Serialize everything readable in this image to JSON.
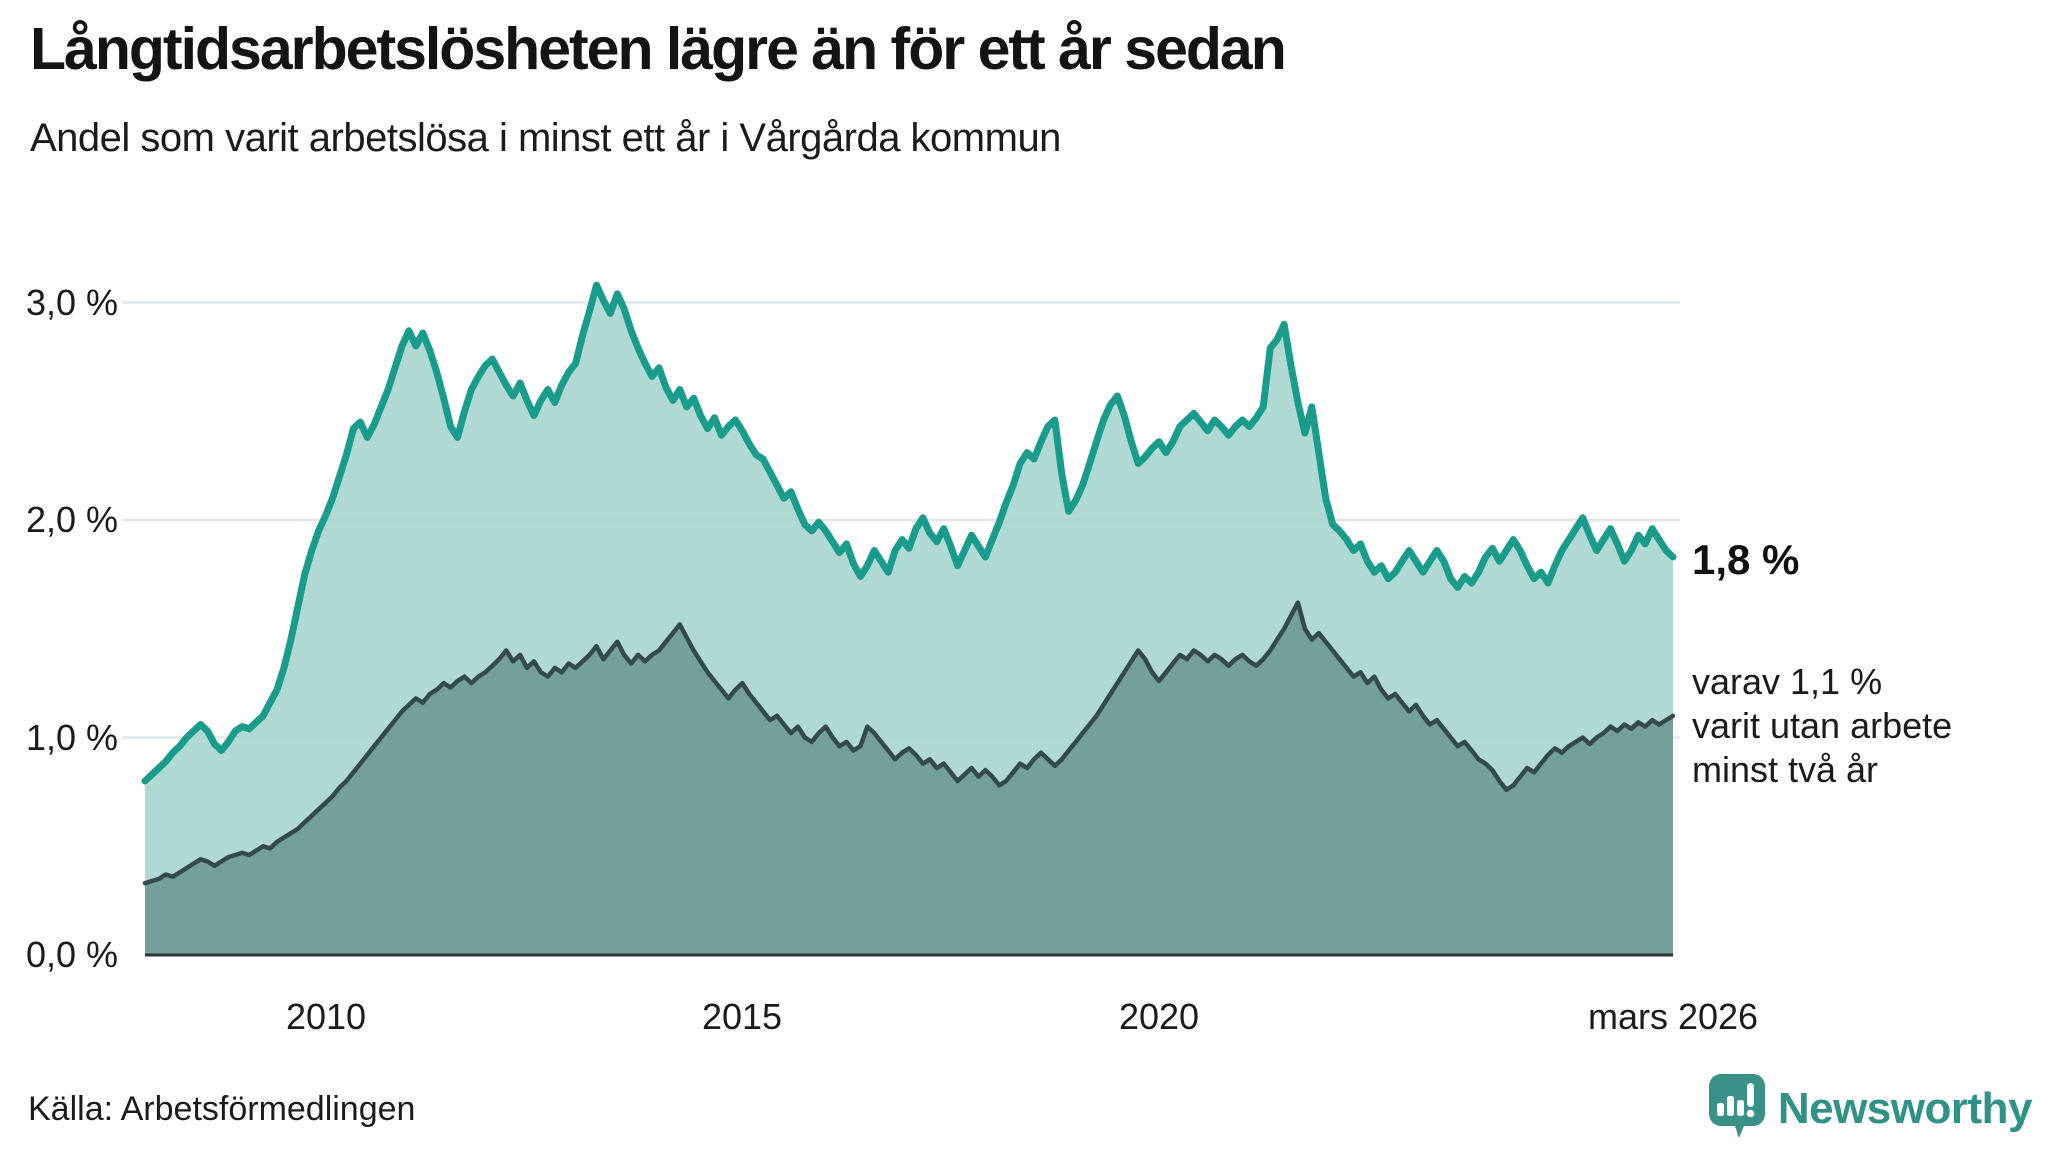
{
  "header": {
    "title": "Långtidsarbetslösheten lägre än för ett år sedan",
    "subtitle": "Andel som varit arbetslösa i minst ett år i Vårgårda kommun"
  },
  "annotations": {
    "end_value_label": "1,8 %",
    "secondary_note": "varav 1,1 %\nvarit utan arbete\nminst två år"
  },
  "footer": {
    "source": "Källa: Arbetsförmedlingen",
    "brand": "Newsworthy"
  },
  "colors": {
    "series1_line": "#1a9c8d",
    "series1_fill": "#a9d6cf",
    "series2_line": "#344a4d",
    "series2_fill": "#6f9b95",
    "gridline": "#e4e7e9",
    "baseline": "#2e3436",
    "brand_teal": "#3a9188",
    "text": "#1b1b1b"
  },
  "chart_data": {
    "type": "area",
    "title": "Långtidsarbetslösheten lägre än för ett år sedan",
    "subtitle": "Andel som varit arbetslösa i minst ett år i Vårgårda kommun",
    "unit": "%",
    "x_start": "2007-11",
    "x_end": "2026-03",
    "x_frequency": "monthly",
    "grid": "horizontal",
    "legend_position": "right-annotations",
    "ylim": [
      0,
      3.45
    ],
    "y_tick_labels": [
      "3,0 %",
      "2,0 %",
      "1,0 %",
      "0,0 %"
    ],
    "y_tick_values": [
      3,
      2,
      1,
      0
    ],
    "x_tick_labels": [
      "2010",
      "2015",
      "2020",
      "mars 2026"
    ],
    "x_tick_month_indices": [
      26,
      86,
      146,
      220
    ],
    "series": [
      {
        "name": "Andel arbetslösa minst ett år",
        "end_value": 1.8,
        "end_label": "1,8 %",
        "color": "#1a9c8d",
        "fill": "#a9d6cf",
        "values": [
          0.8,
          0.83,
          0.86,
          0.89,
          0.93,
          0.96,
          1.0,
          1.03,
          1.06,
          1.03,
          0.97,
          0.94,
          0.98,
          1.03,
          1.05,
          1.04,
          1.07,
          1.1,
          1.16,
          1.22,
          1.32,
          1.45,
          1.6,
          1.75,
          1.86,
          1.95,
          2.02,
          2.1,
          2.2,
          2.3,
          2.42,
          2.45,
          2.38,
          2.44,
          2.52,
          2.6,
          2.7,
          2.8,
          2.87,
          2.8,
          2.86,
          2.78,
          2.68,
          2.56,
          2.43,
          2.38,
          2.5,
          2.6,
          2.66,
          2.71,
          2.74,
          2.68,
          2.62,
          2.57,
          2.63,
          2.55,
          2.48,
          2.55,
          2.6,
          2.54,
          2.62,
          2.68,
          2.72,
          2.85,
          2.96,
          3.08,
          3.01,
          2.95,
          3.04,
          2.97,
          2.87,
          2.79,
          2.72,
          2.66,
          2.7,
          2.61,
          2.55,
          2.6,
          2.52,
          2.56,
          2.48,
          2.42,
          2.47,
          2.39,
          2.43,
          2.46,
          2.41,
          2.35,
          2.3,
          2.28,
          2.22,
          2.16,
          2.1,
          2.13,
          2.05,
          1.98,
          1.95,
          1.99,
          1.95,
          1.9,
          1.85,
          1.89,
          1.8,
          1.74,
          1.79,
          1.86,
          1.81,
          1.76,
          1.86,
          1.91,
          1.87,
          1.96,
          2.01,
          1.94,
          1.9,
          1.96,
          1.88,
          1.79,
          1.86,
          1.93,
          1.88,
          1.83,
          1.91,
          1.99,
          2.08,
          2.16,
          2.26,
          2.31,
          2.28,
          2.36,
          2.43,
          2.46,
          2.21,
          2.04,
          2.09,
          2.16,
          2.26,
          2.36,
          2.46,
          2.53,
          2.57,
          2.48,
          2.36,
          2.26,
          2.29,
          2.33,
          2.36,
          2.31,
          2.36,
          2.43,
          2.46,
          2.49,
          2.45,
          2.41,
          2.46,
          2.43,
          2.39,
          2.43,
          2.46,
          2.43,
          2.47,
          2.52,
          2.79,
          2.83,
          2.9,
          2.71,
          2.54,
          2.4,
          2.52,
          2.31,
          2.1,
          1.98,
          1.95,
          1.91,
          1.86,
          1.89,
          1.81,
          1.76,
          1.79,
          1.73,
          1.76,
          1.81,
          1.86,
          1.81,
          1.76,
          1.81,
          1.86,
          1.81,
          1.73,
          1.69,
          1.74,
          1.71,
          1.76,
          1.83,
          1.87,
          1.81,
          1.86,
          1.91,
          1.86,
          1.79,
          1.73,
          1.76,
          1.71,
          1.79,
          1.86,
          1.91,
          1.96,
          2.01,
          1.93,
          1.86,
          1.91,
          1.96,
          1.89,
          1.81,
          1.86,
          1.93,
          1.89,
          1.96,
          1.91,
          1.86,
          1.83
        ]
      },
      {
        "name": "Andel arbetslösa minst två år",
        "end_value": 1.1,
        "end_label": "varav 1,1 % varit utan arbete minst två år",
        "color": "#344a4d",
        "fill": "#6f9b95",
        "values": [
          0.33,
          0.34,
          0.35,
          0.37,
          0.36,
          0.38,
          0.4,
          0.42,
          0.44,
          0.43,
          0.41,
          0.43,
          0.45,
          0.46,
          0.47,
          0.46,
          0.48,
          0.5,
          0.49,
          0.52,
          0.54,
          0.56,
          0.58,
          0.61,
          0.64,
          0.67,
          0.7,
          0.73,
          0.77,
          0.8,
          0.84,
          0.88,
          0.92,
          0.96,
          1.0,
          1.04,
          1.08,
          1.12,
          1.15,
          1.18,
          1.16,
          1.2,
          1.22,
          1.25,
          1.23,
          1.26,
          1.28,
          1.25,
          1.28,
          1.3,
          1.33,
          1.36,
          1.4,
          1.35,
          1.38,
          1.32,
          1.35,
          1.3,
          1.28,
          1.32,
          1.3,
          1.34,
          1.32,
          1.35,
          1.38,
          1.42,
          1.36,
          1.4,
          1.44,
          1.38,
          1.34,
          1.38,
          1.35,
          1.38,
          1.4,
          1.44,
          1.48,
          1.52,
          1.46,
          1.4,
          1.35,
          1.3,
          1.26,
          1.22,
          1.18,
          1.22,
          1.25,
          1.2,
          1.16,
          1.12,
          1.08,
          1.1,
          1.06,
          1.02,
          1.05,
          1.0,
          0.98,
          1.02,
          1.05,
          1.0,
          0.96,
          0.98,
          0.94,
          0.96,
          1.05,
          1.02,
          0.98,
          0.94,
          0.9,
          0.93,
          0.95,
          0.92,
          0.88,
          0.9,
          0.86,
          0.88,
          0.84,
          0.8,
          0.83,
          0.86,
          0.82,
          0.85,
          0.82,
          0.78,
          0.8,
          0.84,
          0.88,
          0.86,
          0.9,
          0.93,
          0.9,
          0.87,
          0.9,
          0.94,
          0.98,
          1.02,
          1.06,
          1.1,
          1.15,
          1.2,
          1.25,
          1.3,
          1.35,
          1.4,
          1.36,
          1.3,
          1.26,
          1.3,
          1.34,
          1.38,
          1.36,
          1.4,
          1.38,
          1.35,
          1.38,
          1.36,
          1.33,
          1.36,
          1.38,
          1.35,
          1.33,
          1.36,
          1.4,
          1.45,
          1.5,
          1.56,
          1.62,
          1.5,
          1.45,
          1.48,
          1.44,
          1.4,
          1.36,
          1.32,
          1.28,
          1.3,
          1.25,
          1.28,
          1.22,
          1.18,
          1.2,
          1.16,
          1.12,
          1.15,
          1.1,
          1.06,
          1.08,
          1.04,
          1.0,
          0.96,
          0.98,
          0.94,
          0.9,
          0.88,
          0.85,
          0.8,
          0.76,
          0.78,
          0.82,
          0.86,
          0.84,
          0.88,
          0.92,
          0.95,
          0.93,
          0.96,
          0.98,
          1.0,
          0.97,
          1.0,
          1.02,
          1.05,
          1.03,
          1.06,
          1.04,
          1.07,
          1.05,
          1.08,
          1.06,
          1.08,
          1.1
        ]
      }
    ]
  }
}
